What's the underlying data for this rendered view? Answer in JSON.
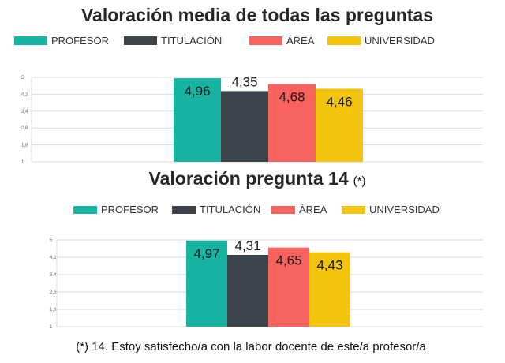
{
  "chart_data": [
    {
      "type": "bar",
      "title": "Valoración media de todas las preguntas",
      "title_suffix": "",
      "categories": [
        ""
      ],
      "series": [
        {
          "name": "PROFESOR",
          "values": [
            4.96
          ],
          "label": "4,96"
        },
        {
          "name": "TITULACIÓN",
          "values": [
            4.35
          ],
          "label": "4,35"
        },
        {
          "name": "ÁREA",
          "values": [
            4.68
          ],
          "label": "4,68"
        },
        {
          "name": "UNIVERSIDAD",
          "values": [
            4.46
          ],
          "label": "4,46"
        }
      ],
      "highlight_series": "TITULACIÓN",
      "yticks": [
        "5",
        "4,2",
        "3,4",
        "2,6",
        "1,8",
        "1"
      ],
      "ylim": [
        1,
        5
      ],
      "xlabel": "",
      "ylabel": "",
      "grid": true,
      "legend": "top"
    },
    {
      "type": "bar",
      "title": "Valoración pregunta 14",
      "title_suffix": "(*)",
      "categories": [
        ""
      ],
      "series": [
        {
          "name": "PROFESOR",
          "values": [
            4.97
          ],
          "label": "4,97"
        },
        {
          "name": "TITULACIÓN",
          "values": [
            4.31
          ],
          "label": "4,31"
        },
        {
          "name": "ÁREA",
          "values": [
            4.65
          ],
          "label": "4,65"
        },
        {
          "name": "UNIVERSIDAD",
          "values": [
            4.43
          ],
          "label": "4,43"
        }
      ],
      "highlight_series": "TITULACIÓN",
      "yticks": [
        "5",
        "4,2",
        "3,4",
        "2,6",
        "1,8",
        "1"
      ],
      "ylim": [
        1,
        5
      ],
      "xlabel": "",
      "ylabel": "",
      "grid": true,
      "legend": "top"
    }
  ],
  "footnote": "(*) 14.  Estoy satisfecho/a con la labor docente de este/a profesor/a",
  "colors": {
    "PROFESOR": "#17b3a3",
    "TITULACIÓN": "#3b4448",
    "ÁREA": "#f8625f",
    "UNIVERSIDAD": "#f3c40d",
    "grid": "#d9d9d9",
    "highlight_label": "#ff2a2a"
  }
}
